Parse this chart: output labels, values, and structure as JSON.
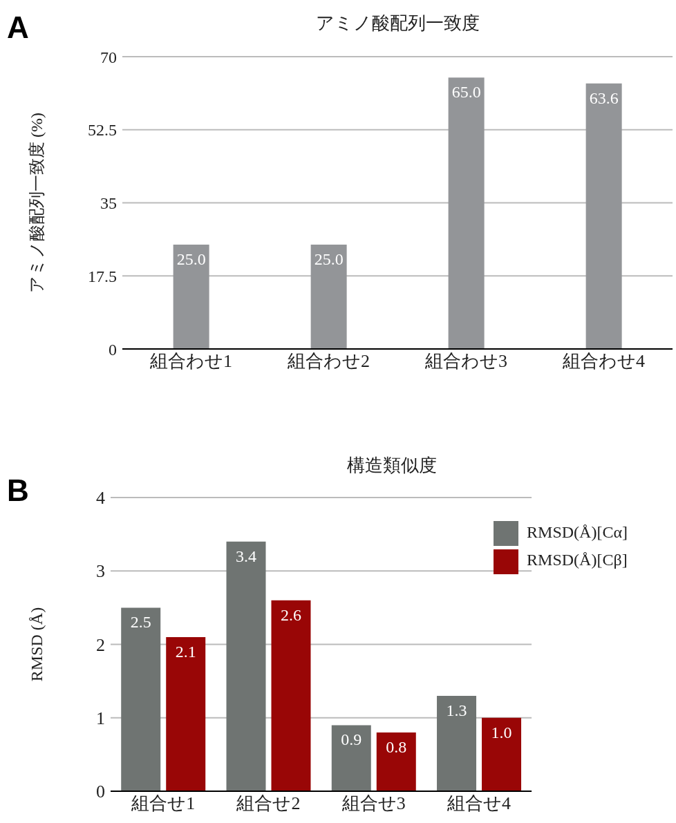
{
  "chart_data": [
    {
      "type": "bar",
      "title": "アミノ酸配列一致度",
      "ylabel": "アミノ酸配列一致度 (%)",
      "annotations": [
        "A"
      ],
      "categories": [
        "組合わせ1",
        "組合わせ2",
        "組合わせ3",
        "組合わせ4"
      ],
      "values": [
        25.0,
        25.0,
        65.0,
        63.6
      ],
      "value_labels": [
        "25.0",
        "25.0",
        "65.0",
        "63.6"
      ],
      "color": "#939598",
      "ylim": [
        0,
        70
      ],
      "yticks": [
        0,
        17.5,
        35,
        52.5,
        70
      ],
      "grid": "y"
    },
    {
      "type": "bar",
      "title": "構造類似度",
      "ylabel": "RMSD (Å)",
      "annotations": [
        "B"
      ],
      "categories": [
        "組合せ1",
        "組合せ2",
        "組合せ3",
        "組合せ4"
      ],
      "series": [
        {
          "name": "RMSD(Å)[Cα]",
          "color": "#6f7472",
          "values": [
            2.5,
            3.4,
            0.9,
            1.3
          ],
          "value_labels": [
            "2.5",
            "3.4",
            "0.9",
            "1.3"
          ]
        },
        {
          "name": "RMSD(Å)[Cβ]",
          "color": "#990606",
          "values": [
            2.1,
            2.6,
            0.8,
            1.0
          ],
          "value_labels": [
            "2.1",
            "2.6",
            "0.8",
            "1.0"
          ]
        }
      ],
      "ylim": [
        0,
        4
      ],
      "yticks": [
        0,
        1,
        2,
        3,
        4
      ],
      "grid": "y",
      "legend": "top right"
    }
  ]
}
